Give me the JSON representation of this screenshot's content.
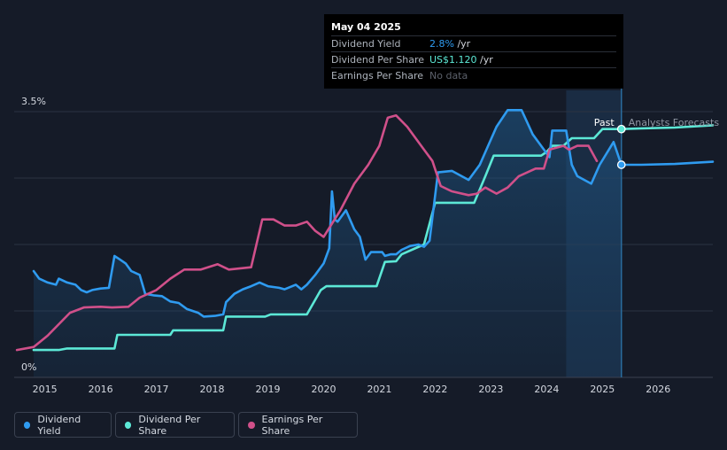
{
  "tooltip": {
    "date": "May 04 2025",
    "rows": [
      {
        "name": "Dividend Yield",
        "value": "2.8%",
        "unit": " /yr",
        "color": "#2f9bf0"
      },
      {
        "name": "Dividend Per Share",
        "value": "US$1.120",
        "unit": " /yr",
        "color": "#5ce8d6"
      },
      {
        "name": "Earnings Per Share",
        "value": "No data",
        "unit": "",
        "color": "#5c616b"
      }
    ]
  },
  "annotations": {
    "past": "Past",
    "forecast": "Analysts Forecasts"
  },
  "legend": [
    {
      "label": "Dividend Yield",
      "color": "#2f9bf0"
    },
    {
      "label": "Dividend Per Share",
      "color": "#5ce8d6"
    },
    {
      "label": "Earnings Per Share",
      "color": "#d0508a"
    }
  ],
  "chart_data": {
    "type": "line",
    "x_ticks": [
      "2015",
      "2016",
      "2017",
      "2018",
      "2019",
      "2020",
      "2021",
      "2022",
      "2023",
      "2024",
      "2025",
      "2026"
    ],
    "y_ticks": [
      "0%",
      "3.5%"
    ],
    "ylim": [
      0,
      3.5
    ],
    "xlim": [
      2014.45,
      2026.98
    ],
    "grid": true,
    "past_until": 2025.34,
    "forecast_start": 2024.35,
    "series": [
      {
        "name": "Dividend Yield",
        "color": "#2f9bf0",
        "points": [
          [
            2014.8,
            1.4
          ],
          [
            2014.9,
            1.3
          ],
          [
            2015.05,
            1.25
          ],
          [
            2015.2,
            1.22
          ],
          [
            2015.25,
            1.3
          ],
          [
            2015.4,
            1.25
          ],
          [
            2015.55,
            1.22
          ],
          [
            2015.65,
            1.15
          ],
          [
            2015.75,
            1.12
          ],
          [
            2015.85,
            1.15
          ],
          [
            2016.0,
            1.17
          ],
          [
            2016.15,
            1.18
          ],
          [
            2016.25,
            1.6
          ],
          [
            2016.35,
            1.55
          ],
          [
            2016.45,
            1.5
          ],
          [
            2016.55,
            1.4
          ],
          [
            2016.7,
            1.35
          ],
          [
            2016.8,
            1.1
          ],
          [
            2016.95,
            1.08
          ],
          [
            2017.1,
            1.07
          ],
          [
            2017.25,
            1.0
          ],
          [
            2017.4,
            0.98
          ],
          [
            2017.55,
            0.9
          ],
          [
            2017.75,
            0.85
          ],
          [
            2017.85,
            0.8
          ],
          [
            2018.05,
            0.81
          ],
          [
            2018.2,
            0.83
          ],
          [
            2018.25,
            0.99
          ],
          [
            2018.4,
            1.1
          ],
          [
            2018.55,
            1.16
          ],
          [
            2018.7,
            1.2
          ],
          [
            2018.85,
            1.25
          ],
          [
            2019.0,
            1.2
          ],
          [
            2019.1,
            1.19
          ],
          [
            2019.2,
            1.18
          ],
          [
            2019.3,
            1.16
          ],
          [
            2019.5,
            1.22
          ],
          [
            2019.6,
            1.16
          ],
          [
            2019.7,
            1.22
          ],
          [
            2019.85,
            1.35
          ],
          [
            2020.0,
            1.5
          ],
          [
            2020.1,
            1.7
          ],
          [
            2020.15,
            2.45
          ],
          [
            2020.2,
            2.08
          ],
          [
            2020.25,
            2.05
          ],
          [
            2020.4,
            2.2
          ],
          [
            2020.55,
            1.95
          ],
          [
            2020.65,
            1.85
          ],
          [
            2020.75,
            1.55
          ],
          [
            2020.85,
            1.65
          ],
          [
            2020.95,
            1.65
          ],
          [
            2021.05,
            1.65
          ],
          [
            2021.1,
            1.6
          ],
          [
            2021.2,
            1.62
          ],
          [
            2021.3,
            1.62
          ],
          [
            2021.4,
            1.68
          ],
          [
            2021.55,
            1.73
          ],
          [
            2021.7,
            1.75
          ],
          [
            2021.8,
            1.72
          ],
          [
            2021.9,
            1.8
          ],
          [
            2022.05,
            2.7
          ],
          [
            2022.3,
            2.72
          ],
          [
            2022.6,
            2.6
          ],
          [
            2022.8,
            2.8
          ],
          [
            2022.95,
            3.05
          ],
          [
            2023.1,
            3.3
          ],
          [
            2023.3,
            3.52
          ],
          [
            2023.55,
            3.52
          ],
          [
            2023.75,
            3.2
          ],
          [
            2023.9,
            3.05
          ],
          [
            2024.05,
            2.9
          ],
          [
            2024.1,
            3.25
          ],
          [
            2024.35,
            3.25
          ],
          [
            2024.45,
            2.8
          ],
          [
            2024.55,
            2.65
          ],
          [
            2024.8,
            2.55
          ],
          [
            2024.95,
            2.8
          ],
          [
            2025.2,
            3.1
          ],
          [
            2025.34,
            2.8
          ],
          [
            2025.7,
            2.8
          ],
          [
            2026.3,
            2.81
          ],
          [
            2026.98,
            2.84
          ]
        ]
      },
      {
        "name": "Dividend Per Share",
        "color": "#5ce8d6",
        "points": [
          [
            2014.8,
            0.36
          ],
          [
            2015.25,
            0.36
          ],
          [
            2015.4,
            0.38
          ],
          [
            2016.25,
            0.38
          ],
          [
            2016.3,
            0.56
          ],
          [
            2017.25,
            0.56
          ],
          [
            2017.3,
            0.62
          ],
          [
            2018.2,
            0.62
          ],
          [
            2018.25,
            0.8
          ],
          [
            2018.95,
            0.8
          ],
          [
            2019.05,
            0.83
          ],
          [
            2019.7,
            0.83
          ],
          [
            2019.95,
            1.15
          ],
          [
            2020.05,
            1.2
          ],
          [
            2020.95,
            1.2
          ],
          [
            2021.1,
            1.52
          ],
          [
            2021.3,
            1.53
          ],
          [
            2021.4,
            1.62
          ],
          [
            2021.8,
            1.75
          ],
          [
            2022.0,
            2.3
          ],
          [
            2022.7,
            2.3
          ],
          [
            2022.9,
            2.65
          ],
          [
            2023.05,
            2.92
          ],
          [
            2023.9,
            2.92
          ],
          [
            2024.0,
            2.97
          ],
          [
            2024.1,
            3.05
          ],
          [
            2024.3,
            3.05
          ],
          [
            2024.45,
            3.15
          ],
          [
            2024.85,
            3.15
          ],
          [
            2025.0,
            3.27
          ],
          [
            2025.34,
            3.27
          ],
          [
            2025.7,
            3.28
          ],
          [
            2026.3,
            3.29
          ],
          [
            2026.98,
            3.32
          ]
        ]
      },
      {
        "name": "Earnings Per Share",
        "color": "#d0508a",
        "points": [
          [
            2014.5,
            0.36
          ],
          [
            2014.8,
            0.4
          ],
          [
            2015.05,
            0.55
          ],
          [
            2015.25,
            0.7
          ],
          [
            2015.45,
            0.85
          ],
          [
            2015.7,
            0.92
          ],
          [
            2016.0,
            0.93
          ],
          [
            2016.2,
            0.92
          ],
          [
            2016.5,
            0.93
          ],
          [
            2016.7,
            1.05
          ],
          [
            2017.0,
            1.15
          ],
          [
            2017.25,
            1.3
          ],
          [
            2017.5,
            1.42
          ],
          [
            2017.8,
            1.42
          ],
          [
            2018.1,
            1.49
          ],
          [
            2018.3,
            1.42
          ],
          [
            2018.7,
            1.45
          ],
          [
            2018.9,
            2.08
          ],
          [
            2019.1,
            2.08
          ],
          [
            2019.3,
            2.0
          ],
          [
            2019.5,
            2.0
          ],
          [
            2019.7,
            2.05
          ],
          [
            2019.85,
            1.93
          ],
          [
            2020.0,
            1.85
          ],
          [
            2020.3,
            2.2
          ],
          [
            2020.55,
            2.55
          ],
          [
            2020.8,
            2.8
          ],
          [
            2021.0,
            3.05
          ],
          [
            2021.15,
            3.42
          ],
          [
            2021.3,
            3.45
          ],
          [
            2021.5,
            3.3
          ],
          [
            2021.8,
            3.0
          ],
          [
            2021.95,
            2.85
          ],
          [
            2022.1,
            2.52
          ],
          [
            2022.3,
            2.45
          ],
          [
            2022.6,
            2.4
          ],
          [
            2022.75,
            2.42
          ],
          [
            2022.9,
            2.5
          ],
          [
            2023.1,
            2.42
          ],
          [
            2023.3,
            2.5
          ],
          [
            2023.5,
            2.65
          ],
          [
            2023.8,
            2.75
          ],
          [
            2023.95,
            2.75
          ],
          [
            2024.05,
            3.0
          ],
          [
            2024.3,
            3.05
          ],
          [
            2024.4,
            3.0
          ],
          [
            2024.55,
            3.05
          ],
          [
            2024.75,
            3.05
          ],
          [
            2024.9,
            2.85
          ]
        ]
      }
    ]
  }
}
